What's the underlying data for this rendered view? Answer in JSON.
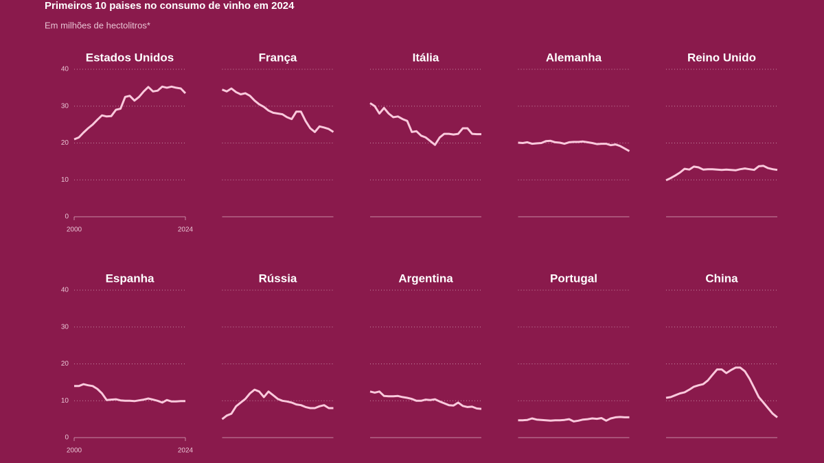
{
  "header": {
    "title": "Primeiros 10 paises no consumo de vinho em 2024",
    "subtitle": "Em milhões de hectolitros*"
  },
  "chart_data": [
    {
      "type": "line",
      "title": "Estados Unidos",
      "ylim": [
        0,
        40
      ],
      "yticks": [
        0,
        10,
        20,
        30,
        40
      ],
      "ytick_labels": true,
      "xlim": [
        2000,
        2024
      ],
      "xticks": [
        2000,
        2024
      ],
      "color": "#f9c9dc",
      "grid": true,
      "x": [
        2000,
        2001,
        2002,
        2003,
        2004,
        2005,
        2006,
        2007,
        2008,
        2009,
        2010,
        2011,
        2012,
        2013,
        2014,
        2015,
        2016,
        2017,
        2018,
        2019,
        2020,
        2021,
        2022,
        2023,
        2024
      ],
      "values": [
        21,
        21.5,
        22.8,
        24,
        25,
        26.3,
        27.5,
        27.2,
        27.3,
        29,
        29.3,
        32.5,
        32.8,
        31.5,
        32.5,
        34,
        35.2,
        34,
        34.2,
        35.3,
        35,
        35.3,
        35,
        34.8,
        33.5
      ]
    },
    {
      "type": "line",
      "title": "França",
      "ylim": [
        0,
        40
      ],
      "yticks": [
        0,
        10,
        20,
        30,
        40
      ],
      "ytick_labels": false,
      "xlim": [
        2000,
        2024
      ],
      "color": "#f9c9dc",
      "grid": true,
      "x": [
        2000,
        2001,
        2002,
        2003,
        2004,
        2005,
        2006,
        2007,
        2008,
        2009,
        2010,
        2011,
        2012,
        2013,
        2014,
        2015,
        2016,
        2017,
        2018,
        2019,
        2020,
        2021,
        2022,
        2023,
        2024
      ],
      "values": [
        34.5,
        34,
        34.8,
        33.8,
        33.2,
        33.5,
        32.8,
        31.5,
        30.5,
        29.8,
        28.8,
        28.2,
        28,
        27.8,
        27,
        26.5,
        28.5,
        28.5,
        26,
        24,
        23,
        24.5,
        24.2,
        23.8,
        23
      ]
    },
    {
      "type": "line",
      "title": "Itália",
      "ylim": [
        0,
        40
      ],
      "yticks": [
        0,
        10,
        20,
        30,
        40
      ],
      "ytick_labels": false,
      "xlim": [
        2000,
        2024
      ],
      "color": "#f9c9dc",
      "grid": true,
      "x": [
        2000,
        2001,
        2002,
        2003,
        2004,
        2005,
        2006,
        2007,
        2008,
        2009,
        2010,
        2011,
        2012,
        2013,
        2014,
        2015,
        2016,
        2017,
        2018,
        2019,
        2020,
        2021,
        2022,
        2023,
        2024
      ],
      "values": [
        30.8,
        30,
        28,
        29.5,
        28,
        27,
        27.2,
        26.5,
        26,
        23,
        23.2,
        22,
        21.5,
        20.5,
        19.5,
        21.5,
        22.5,
        22.5,
        22.3,
        22.5,
        24,
        24,
        22.5,
        22.4,
        22.4
      ]
    },
    {
      "type": "line",
      "title": "Alemanha",
      "ylim": [
        0,
        40
      ],
      "yticks": [
        0,
        10,
        20,
        30,
        40
      ],
      "ytick_labels": false,
      "xlim": [
        2000,
        2024
      ],
      "color": "#f9c9dc",
      "grid": true,
      "x": [
        2000,
        2001,
        2002,
        2003,
        2004,
        2005,
        2006,
        2007,
        2008,
        2009,
        2010,
        2011,
        2012,
        2013,
        2014,
        2015,
        2016,
        2017,
        2018,
        2019,
        2020,
        2021,
        2022,
        2023,
        2024
      ],
      "values": [
        20.1,
        20,
        20.2,
        19.8,
        19.9,
        20,
        20.5,
        20.6,
        20.2,
        20.1,
        19.8,
        20.2,
        20.3,
        20.3,
        20.4,
        20.2,
        20,
        19.7,
        19.8,
        19.8,
        19.4,
        19.6,
        19.2,
        18.5,
        17.8
      ]
    },
    {
      "type": "line",
      "title": "Reino Unido",
      "ylim": [
        0,
        40
      ],
      "yticks": [
        0,
        10,
        20,
        30,
        40
      ],
      "ytick_labels": false,
      "xlim": [
        2000,
        2024
      ],
      "color": "#f9c9dc",
      "grid": true,
      "x": [
        2000,
        2001,
        2002,
        2003,
        2004,
        2005,
        2006,
        2007,
        2008,
        2009,
        2010,
        2011,
        2012,
        2013,
        2014,
        2015,
        2016,
        2017,
        2018,
        2019,
        2020,
        2021,
        2022,
        2023,
        2024
      ],
      "values": [
        9.9,
        10.5,
        11.2,
        12,
        13,
        12.8,
        13.6,
        13.4,
        12.8,
        12.9,
        12.9,
        12.8,
        12.7,
        12.8,
        12.7,
        12.6,
        12.9,
        13.1,
        12.9,
        12.7,
        13.7,
        13.8,
        13.2,
        12.9,
        12.7
      ]
    },
    {
      "type": "line",
      "title": "Espanha",
      "ylim": [
        0,
        40
      ],
      "yticks": [
        0,
        10,
        20,
        30,
        40
      ],
      "ytick_labels": true,
      "xlim": [
        2000,
        2024
      ],
      "xticks": [
        2000,
        2024
      ],
      "color": "#f9c9dc",
      "grid": true,
      "x": [
        2000,
        2001,
        2002,
        2003,
        2004,
        2005,
        2006,
        2007,
        2008,
        2009,
        2010,
        2011,
        2012,
        2013,
        2014,
        2015,
        2016,
        2017,
        2018,
        2019,
        2020,
        2021,
        2022,
        2023,
        2024
      ],
      "values": [
        14,
        14,
        14.5,
        14.2,
        14,
        13.2,
        12,
        10.2,
        10.3,
        10.4,
        10.1,
        10,
        10,
        9.9,
        10.1,
        10.3,
        10.6,
        10.3,
        10,
        9.5,
        10.2,
        9.8,
        9.8,
        9.9,
        9.9
      ]
    },
    {
      "type": "line",
      "title": "Rússia",
      "ylim": [
        0,
        40
      ],
      "yticks": [
        0,
        10,
        20,
        30,
        40
      ],
      "ytick_labels": false,
      "xlim": [
        2000,
        2024
      ],
      "color": "#f9c9dc",
      "grid": true,
      "x": [
        2000,
        2001,
        2002,
        2003,
        2004,
        2005,
        2006,
        2007,
        2008,
        2009,
        2010,
        2011,
        2012,
        2013,
        2014,
        2015,
        2016,
        2017,
        2018,
        2019,
        2020,
        2021,
        2022,
        2023,
        2024
      ],
      "values": [
        5,
        6,
        6.5,
        8.5,
        9.5,
        10.5,
        12,
        13,
        12.5,
        11,
        12.5,
        11.5,
        10.5,
        10,
        9.8,
        9.5,
        9,
        8.8,
        8.3,
        8,
        8,
        8.5,
        8.8,
        8,
        8
      ]
    },
    {
      "type": "line",
      "title": "Argentina",
      "ylim": [
        0,
        40
      ],
      "yticks": [
        0,
        10,
        20,
        30,
        40
      ],
      "ytick_labels": false,
      "xlim": [
        2000,
        2024
      ],
      "color": "#f9c9dc",
      "grid": true,
      "x": [
        2000,
        2001,
        2002,
        2003,
        2004,
        2005,
        2006,
        2007,
        2008,
        2009,
        2010,
        2011,
        2012,
        2013,
        2014,
        2015,
        2016,
        2017,
        2018,
        2019,
        2020,
        2021,
        2022,
        2023,
        2024
      ],
      "values": [
        12.5,
        12.2,
        12.5,
        11.3,
        11.2,
        11.2,
        11.3,
        11,
        10.8,
        10.5,
        10,
        10,
        10.3,
        10.2,
        10.4,
        9.8,
        9.3,
        8.8,
        8.7,
        9.5,
        8.6,
        8.3,
        8.4,
        7.9,
        7.8
      ]
    },
    {
      "type": "line",
      "title": "Portugal",
      "ylim": [
        0,
        40
      ],
      "yticks": [
        0,
        10,
        20,
        30,
        40
      ],
      "ytick_labels": false,
      "xlim": [
        2000,
        2024
      ],
      "color": "#f9c9dc",
      "grid": true,
      "x": [
        2000,
        2001,
        2002,
        2003,
        2004,
        2005,
        2006,
        2007,
        2008,
        2009,
        2010,
        2011,
        2012,
        2013,
        2014,
        2015,
        2016,
        2017,
        2018,
        2019,
        2020,
        2021,
        2022,
        2023,
        2024
      ],
      "values": [
        4.7,
        4.7,
        4.8,
        5.2,
        4.9,
        4.8,
        4.7,
        4.6,
        4.7,
        4.7,
        4.8,
        5,
        4.4,
        4.6,
        4.9,
        5,
        5.2,
        5.1,
        5.3,
        4.6,
        5.2,
        5.5,
        5.6,
        5.5,
        5.5
      ]
    },
    {
      "type": "line",
      "title": "China",
      "ylim": [
        0,
        40
      ],
      "yticks": [
        0,
        10,
        20,
        30,
        40
      ],
      "ytick_labels": false,
      "xlim": [
        2000,
        2024
      ],
      "color": "#f9c9dc",
      "grid": true,
      "x": [
        2000,
        2001,
        2002,
        2003,
        2004,
        2005,
        2006,
        2007,
        2008,
        2009,
        2010,
        2011,
        2012,
        2013,
        2014,
        2015,
        2016,
        2017,
        2018,
        2019,
        2020,
        2021,
        2022,
        2023,
        2024
      ],
      "values": [
        10.8,
        11,
        11.5,
        12,
        12.3,
        13,
        13.8,
        14.2,
        14.5,
        15.5,
        17,
        18.5,
        18.5,
        17.5,
        18.3,
        19,
        19,
        18,
        16,
        13.5,
        11,
        9.5,
        8,
        6.5,
        5.5
      ]
    }
  ]
}
